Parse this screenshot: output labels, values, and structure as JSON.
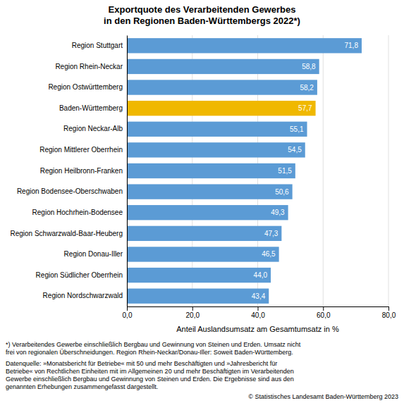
{
  "chart_data": {
    "type": "bar",
    "orientation": "horizontal",
    "title": "Exportquote des Verarbeitenden Gewerbes\nin den Regionen Baden-Württembergs 2022*)",
    "categories": [
      "Region Stuttgart",
      "Region Rhein-Neckar",
      "Region Ostwürttemberg",
      "Baden-Württemberg",
      "Region Neckar-Alb",
      "Region Mittlerer Oberrhein",
      "Region Heilbronn-Franken",
      "Region Bodensee-Oberschwaben",
      "Region Hochrhein-Bodensee",
      "Region Schwarzwald-Baar-Heuberg",
      "Region Donau-Iller",
      "Region Südlicher Oberrhein",
      "Region Nordschwarzwald"
    ],
    "values": [
      71.8,
      58.8,
      58.2,
      57.7,
      55.1,
      54.5,
      51.5,
      50.6,
      49.3,
      47.3,
      46.5,
      44.0,
      43.4
    ],
    "value_labels": [
      "71,8",
      "58,8",
      "58,2",
      "57,7",
      "55,1",
      "54,5",
      "51,5",
      "50,6",
      "49,3",
      "47,3",
      "46,5",
      "44,0",
      "43,4"
    ],
    "data_labels": true,
    "colors": [
      "#5b9bd5",
      "#5b9bd5",
      "#5b9bd5",
      "#f0b800",
      "#5b9bd5",
      "#5b9bd5",
      "#5b9bd5",
      "#5b9bd5",
      "#5b9bd5",
      "#5b9bd5",
      "#5b9bd5",
      "#5b9bd5",
      "#5b9bd5"
    ],
    "xlabel": "Anteil Auslandsumsatz am Gesamtumsatz in %",
    "xlim": [
      0,
      80
    ],
    "xticks": [
      {
        "value": 0,
        "label": "0,0"
      },
      {
        "value": 20,
        "label": "20,0"
      },
      {
        "value": 40,
        "label": "40,0"
      },
      {
        "value": 60,
        "label": "60,0"
      },
      {
        "value": 80,
        "label": "80,0"
      }
    ],
    "grid": true,
    "footnotes": [
      "*) Verarbeitendes Gewerbe einschließlich Bergbau und Gewinnung von Steinen und Erden. Umsatz nicht\nfrei von regionalen Überschneidungen. Region Rhein-Neckar/Donau-Iller: Soweit Baden-Württemberg.",
      "Datenquelle: »Monatsbericht für Betriebe« mit 50 und mehr Beschäftigten und »Jahresbericht für\nBetriebe« von Rechtlichen Einheiten mit im Allgemeinen 20 und mehr Beschäftigten im Verarbeitenden\nGewerbe einschließlich Bergbau und Gewinnung von Steinen und Erden. Die Ergebnisse sind aus den\ngenannten Erhebungen zusammengefasst dargestellt."
    ],
    "copyright": "© Statistisches Landesamt Baden-Württemberg 2023"
  }
}
